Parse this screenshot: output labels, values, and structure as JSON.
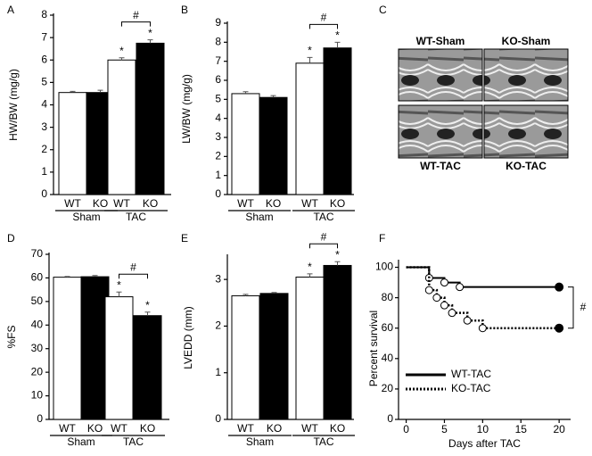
{
  "chart_data": [
    {
      "type": "bar",
      "panel": "A",
      "ylabel": "HW/BW (mg/g)",
      "categories": [
        "WT",
        "KO",
        "WT",
        "KO"
      ],
      "groups": [
        "Sham",
        "TAC"
      ],
      "values": [
        4.55,
        4.55,
        6.0,
        6.75
      ],
      "errors": [
        0.05,
        0.1,
        0.1,
        0.15
      ],
      "colors": [
        "#ffffff",
        "#000000",
        "#ffffff",
        "#000000"
      ],
      "significance": [
        null,
        null,
        "*",
        "*"
      ],
      "bracket": "#",
      "ylim": [
        0,
        8
      ],
      "yticks": [
        0,
        1,
        2,
        3,
        4,
        5,
        6,
        7,
        8
      ]
    },
    {
      "type": "bar",
      "panel": "B",
      "ylabel": "LW/BW (mg/g)",
      "categories": [
        "WT",
        "KO",
        "WT",
        "KO"
      ],
      "groups": [
        "Sham",
        "TAC"
      ],
      "values": [
        5.3,
        5.1,
        6.9,
        7.7
      ],
      "errors": [
        0.1,
        0.1,
        0.3,
        0.3
      ],
      "colors": [
        "#ffffff",
        "#000000",
        "#ffffff",
        "#000000"
      ],
      "significance": [
        null,
        null,
        "*",
        "*"
      ],
      "bracket": "#",
      "ylim": [
        0,
        9
      ],
      "yticks": [
        0,
        1,
        2,
        3,
        4,
        5,
        6,
        7,
        8,
        9
      ]
    },
    {
      "type": "image",
      "panel": "C",
      "labels": [
        "WT-Sham",
        "KO-Sham",
        "WT-TAC",
        "KO-TAC"
      ]
    },
    {
      "type": "bar",
      "panel": "D",
      "ylabel": "%FS",
      "categories": [
        "WT",
        "KO",
        "WT",
        "KO"
      ],
      "groups": [
        "Sham",
        "TAC"
      ],
      "values": [
        60.3,
        60.5,
        52,
        44
      ],
      "errors": [
        0.3,
        0.5,
        2,
        1.5
      ],
      "colors": [
        "#ffffff",
        "#000000",
        "#ffffff",
        "#000000"
      ],
      "significance": [
        null,
        null,
        "*",
        "*"
      ],
      "bracket": "#",
      "ylim": [
        0,
        70
      ],
      "yticks": [
        0,
        10,
        20,
        30,
        40,
        50,
        60,
        70
      ]
    },
    {
      "type": "bar",
      "panel": "E",
      "ylabel": "LVEDD (mm)",
      "categories": [
        "WT",
        "KO",
        "WT",
        "KO"
      ],
      "groups": [
        "Sham",
        "TAC"
      ],
      "values": [
        2.65,
        2.7,
        3.05,
        3.3
      ],
      "errors": [
        0.03,
        0.02,
        0.07,
        0.08
      ],
      "colors": [
        "#ffffff",
        "#000000",
        "#ffffff",
        "#000000"
      ],
      "significance": [
        null,
        null,
        "*",
        "*"
      ],
      "bracket": "#",
      "ylim": [
        0,
        3.5
      ],
      "yticks": [
        0,
        1,
        2,
        3
      ]
    },
    {
      "type": "survival",
      "panel": "F",
      "xlabel": "Days after TAC",
      "ylabel": "Percent survival",
      "annotation": "#",
      "xlim": [
        -1,
        21.5
      ],
      "xticks": [
        0,
        5,
        10,
        15,
        20
      ],
      "ylim": [
        0,
        105
      ],
      "yticks": [
        0,
        20,
        40,
        60,
        80,
        100
      ],
      "series": [
        {
          "name": "WT-TAC",
          "color": "#000000",
          "dash": "solid",
          "x": [
            0,
            3,
            5,
            7,
            20
          ],
          "values": [
            100,
            93,
            90,
            87,
            87
          ]
        },
        {
          "name": "KO-TAC",
          "color": "#000000",
          "dash": "dotted",
          "x": [
            0,
            3,
            4,
            5,
            6,
            8,
            10,
            20
          ],
          "values": [
            100,
            85,
            80,
            75,
            70,
            65,
            60,
            60
          ]
        }
      ]
    }
  ]
}
